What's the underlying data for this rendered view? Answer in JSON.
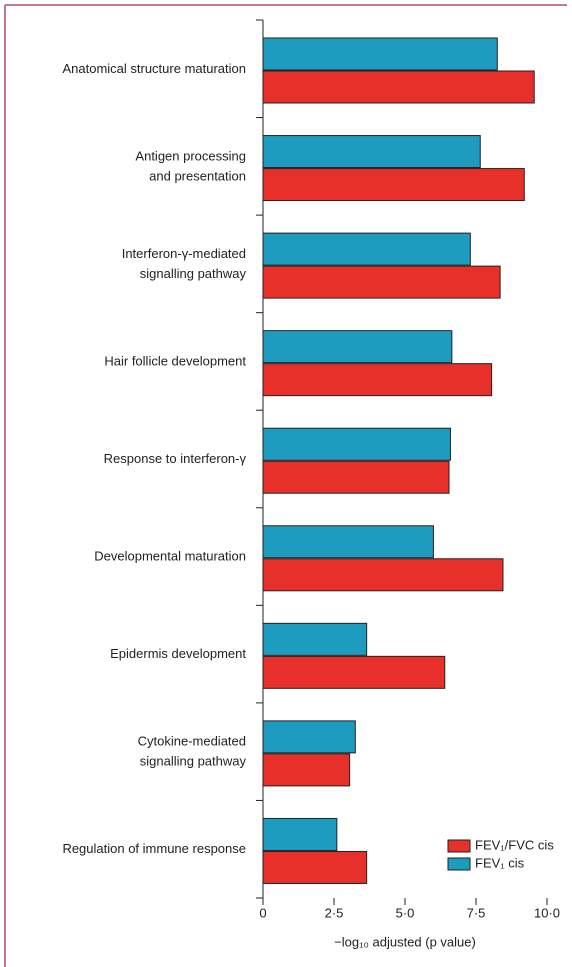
{
  "chart_data": {
    "type": "barh",
    "categories": [
      "Anatomical structure maturation",
      "Antigen processing\nand presentation",
      "Interferon-γ-mediated\nsignalling pathway",
      "Hair follicle development",
      "Response to interferon-γ",
      "Developmental maturation",
      "Epidermis development",
      "Cytokine-mediated\nsignalling pathway",
      "Regulation of immune response"
    ],
    "series": [
      {
        "name": "FEV₁ cis",
        "color": "#1e9cc0",
        "values": [
          8.25,
          7.65,
          7.3,
          6.65,
          6.6,
          6.0,
          3.65,
          3.25,
          2.6
        ]
      },
      {
        "name": "FEV₁/FVC cis",
        "color": "#e8302a",
        "values": [
          9.55,
          9.2,
          8.35,
          8.05,
          6.55,
          8.45,
          6.4,
          3.05,
          3.65
        ]
      }
    ],
    "xlim": [
      0,
      10
    ],
    "xticks": [
      0,
      {
        "value": 2.5,
        "label": "2·5"
      },
      {
        "value": 5,
        "label": "5·0"
      },
      {
        "value": 7.5,
        "label": "7·5"
      },
      {
        "value": 10,
        "label": "10·0"
      }
    ],
    "xlabel": "−log₁₀ adjusted (p value)",
    "legend": "bottom-right"
  }
}
